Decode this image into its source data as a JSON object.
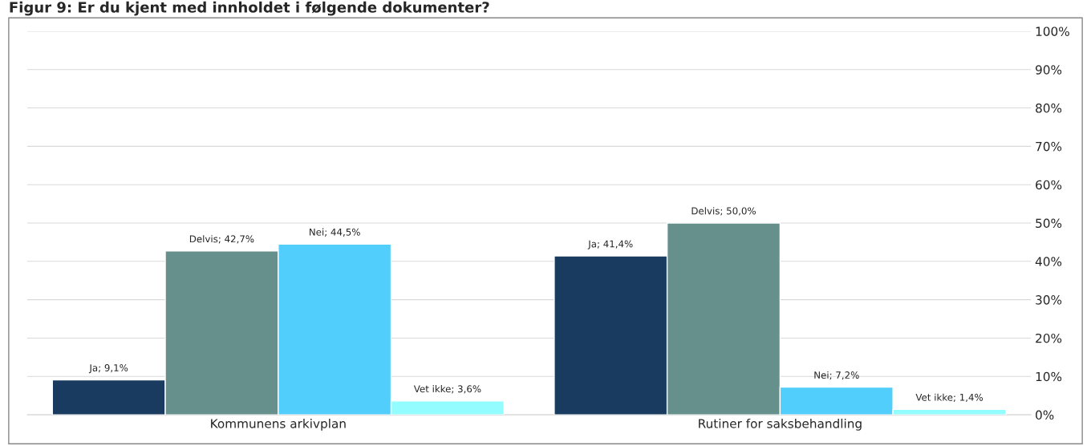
{
  "chart_data": {
    "type": "bar",
    "title": "Figur 9: Er du kjent med innholdet i følgende dokumenter?",
    "categories": [
      "Kommunens arkivplan",
      "Rutiner for saksbehandling"
    ],
    "series": [
      {
        "color": "#1a3b60",
        "values": [
          9.1,
          41.4
        ],
        "value_labels": [
          "Ja; 9,1%",
          "Ja; 41,4%"
        ]
      },
      {
        "color": "#66908c",
        "values": [
          42.7,
          50.0
        ],
        "value_labels": [
          "Delvis; 42,7%",
          "Delvis; 50,0%"
        ]
      },
      {
        "color": "#52cefd",
        "values": [
          44.5,
          7.2
        ],
        "value_labels": [
          "Nei; 44,5%",
          "Nei; 7,2%"
        ]
      },
      {
        "color": "#93fcff",
        "values": [
          3.6,
          1.4
        ],
        "value_labels": [
          "Vet ikke; 3,6%",
          "Vet ikke; 1,4%"
        ]
      }
    ],
    "ylim": [
      0,
      100
    ],
    "yticks": [
      {
        "value": 0,
        "label": "0%"
      },
      {
        "value": 10,
        "label": "10%"
      },
      {
        "value": 20,
        "label": "20%"
      },
      {
        "value": 30,
        "label": "30%"
      },
      {
        "value": 40,
        "label": "40%"
      },
      {
        "value": 50,
        "label": "50%"
      },
      {
        "value": 60,
        "label": "60%"
      },
      {
        "value": 70,
        "label": "70%"
      },
      {
        "value": 80,
        "label": "80%"
      },
      {
        "value": 90,
        "label": "90%"
      },
      {
        "value": 100,
        "label": "100%"
      }
    ],
    "grid": "y",
    "legend": false
  }
}
